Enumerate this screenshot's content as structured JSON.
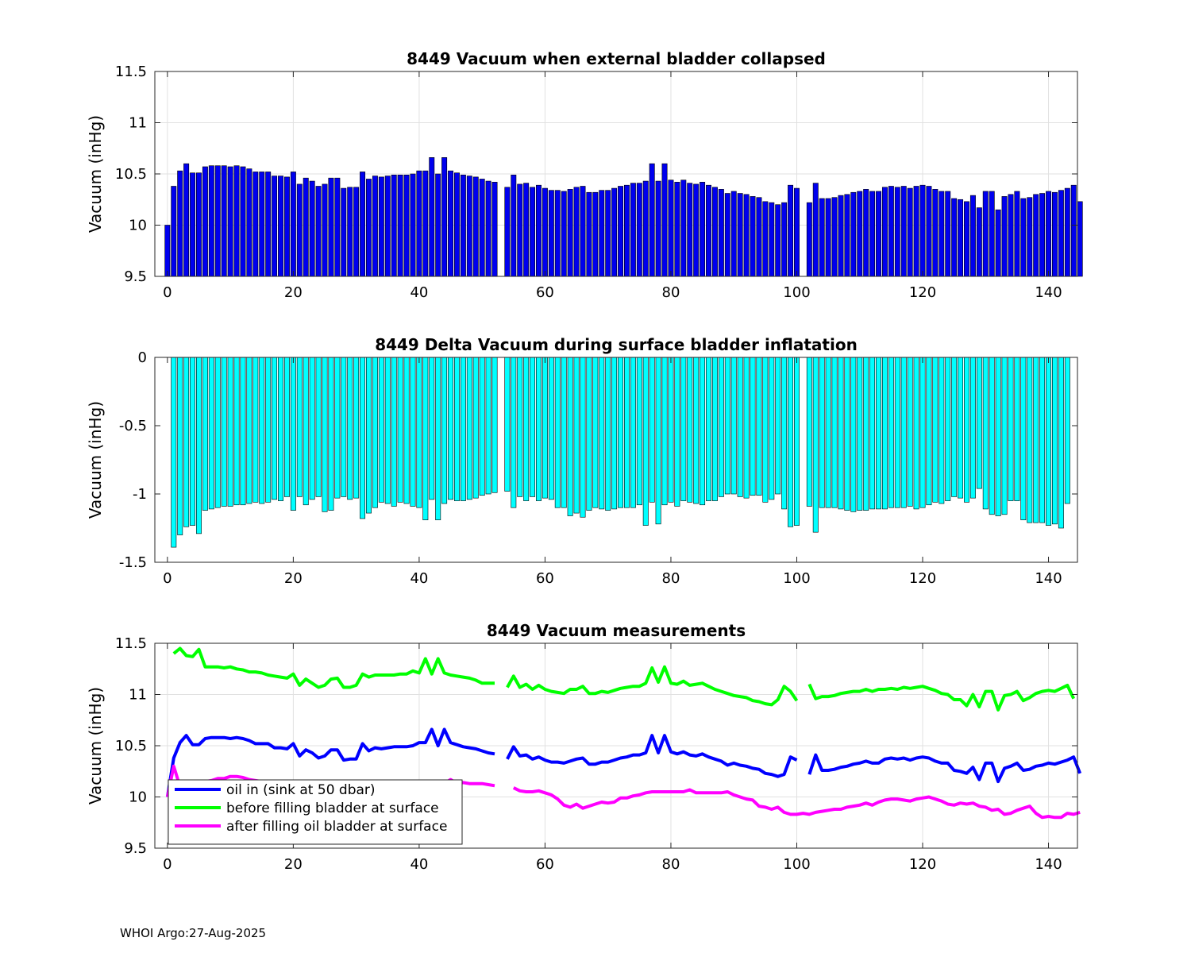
{
  "footer": "WHOI Argo:27-Aug-2025",
  "chart_data": [
    {
      "type": "bar",
      "title": "8449 Vacuum when external bladder collapsed",
      "xlabel": "",
      "ylabel": "Vacuum (inHg)",
      "xlim": [
        -2,
        144.6
      ],
      "ylim": [
        9.5,
        11.5
      ],
      "xticks": [
        "0",
        "20",
        "40",
        "60",
        "80",
        "100",
        "120",
        "140"
      ],
      "yticks": [
        "9.5",
        "10",
        "10.5",
        "11",
        "11.5"
      ],
      "grid": true,
      "bar_color": "#0000EE",
      "x_start": 0,
      "missing_cycles": [
        53,
        101
      ],
      "values": [
        10.0,
        10.38,
        10.53,
        10.6,
        10.51,
        10.51,
        10.57,
        10.58,
        10.58,
        10.58,
        10.57,
        10.58,
        10.57,
        10.55,
        10.52,
        10.52,
        10.52,
        10.48,
        10.48,
        10.47,
        10.52,
        10.4,
        10.46,
        10.43,
        10.38,
        10.4,
        10.46,
        10.46,
        10.36,
        10.37,
        10.37,
        10.52,
        10.45,
        10.48,
        10.47,
        10.48,
        10.49,
        10.49,
        10.49,
        10.5,
        10.53,
        10.53,
        10.66,
        10.5,
        10.66,
        10.53,
        10.51,
        10.49,
        10.48,
        10.47,
        10.45,
        10.43,
        10.42,
        null,
        10.37,
        10.49,
        10.4,
        10.41,
        10.37,
        10.39,
        10.36,
        10.34,
        10.34,
        10.33,
        10.35,
        10.37,
        10.38,
        10.32,
        10.32,
        10.34,
        10.34,
        10.36,
        10.38,
        10.39,
        10.41,
        10.41,
        10.43,
        10.6,
        10.43,
        10.6,
        10.44,
        10.42,
        10.44,
        10.41,
        10.4,
        10.42,
        10.39,
        10.37,
        10.35,
        10.31,
        10.33,
        10.31,
        10.3,
        10.28,
        10.27,
        10.23,
        10.22,
        10.2,
        10.22,
        10.39,
        10.36,
        null,
        10.22,
        10.41,
        10.26,
        10.26,
        10.27,
        10.29,
        10.3,
        10.32,
        10.33,
        10.35,
        10.33,
        10.33,
        10.37,
        10.38,
        10.37,
        10.38,
        10.36,
        10.38,
        10.39,
        10.38,
        10.35,
        10.33,
        10.33,
        10.26,
        10.25,
        10.23,
        10.29,
        10.17,
        10.33,
        10.33,
        10.15,
        10.28,
        10.3,
        10.33,
        10.26,
        10.27,
        10.3,
        10.31,
        10.33,
        10.32,
        10.34,
        10.36,
        10.39,
        10.23
      ]
    },
    {
      "type": "bar",
      "title": "8449 Delta Vacuum during surface bladder inflatation",
      "xlabel": "",
      "ylabel": "Vacuum (inHg)",
      "xlim": [
        -2,
        144.6
      ],
      "ylim": [
        -1.5,
        0
      ],
      "xticks": [
        "0",
        "20",
        "40",
        "60",
        "80",
        "100",
        "120",
        "140"
      ],
      "yticks": [
        "-1.5",
        "-1",
        "-0.5",
        "0"
      ],
      "grid": false,
      "bar_color": "#00FFFF",
      "x_start": 1,
      "missing_cycles": [
        53,
        101
      ],
      "values": [
        -1.39,
        -1.3,
        -1.24,
        -1.23,
        -1.29,
        -1.12,
        -1.11,
        -1.1,
        -1.09,
        -1.09,
        -1.08,
        -1.08,
        -1.07,
        -1.06,
        -1.07,
        -1.06,
        -1.04,
        -1.05,
        -1.02,
        -1.12,
        -1.02,
        -1.08,
        -1.04,
        -1.02,
        -1.13,
        -1.12,
        -1.03,
        -1.02,
        -1.04,
        -1.03,
        -1.18,
        -1.14,
        -1.1,
        -1.06,
        -1.07,
        -1.09,
        -1.06,
        -1.07,
        -1.09,
        -1.1,
        -1.19,
        -1.04,
        -1.19,
        -1.07,
        -1.04,
        -1.05,
        -1.05,
        -1.04,
        -1.03,
        -1.01,
        -1.0,
        -0.99,
        null,
        -0.98,
        -1.1,
        -1.02,
        -1.05,
        -1.02,
        -1.05,
        -1.03,
        -1.04,
        -1.1,
        -1.1,
        -1.16,
        -1.14,
        -1.17,
        -1.12,
        -1.1,
        -1.11,
        -1.12,
        -1.11,
        -1.1,
        -1.1,
        -1.1,
        -1.08,
        -1.23,
        -1.06,
        -1.22,
        -1.08,
        -1.06,
        -1.09,
        -1.05,
        -1.06,
        -1.07,
        -1.08,
        -1.05,
        -1.05,
        -1.02,
        -1.0,
        -1.0,
        -1.02,
        -1.03,
        -1.01,
        -1.01,
        -1.06,
        -1.04,
        -1.0,
        -1.11,
        -1.24,
        -1.23,
        null,
        -1.09,
        -1.28,
        -1.1,
        -1.1,
        -1.1,
        -1.11,
        -1.12,
        -1.13,
        -1.12,
        -1.12,
        -1.11,
        -1.11,
        -1.11,
        -1.1,
        -1.1,
        -1.1,
        -1.09,
        -1.11,
        -1.1,
        -1.08,
        -1.06,
        -1.07,
        -1.05,
        -1.02,
        -1.03,
        -1.06,
        -1.03,
        -0.96,
        -1.11,
        -1.15,
        -1.16,
        -1.15,
        -1.05,
        -1.05,
        -1.19,
        -1.21,
        -1.21,
        -1.21,
        -1.23,
        -1.22,
        -1.25,
        -1.07
      ]
    },
    {
      "type": "line",
      "title": "8449 Vacuum measurements",
      "xlabel": "",
      "ylabel": "Vacuum (inHg)",
      "xlim": [
        -2,
        144.6
      ],
      "ylim": [
        9.5,
        11.5
      ],
      "xticks": [
        "0",
        "20",
        "40",
        "60",
        "80",
        "100",
        "120",
        "140"
      ],
      "yticks": [
        "9.5",
        "10",
        "10.5",
        "11",
        "11.5"
      ],
      "grid": true,
      "legend": "bottom-left",
      "series": [
        {
          "name": "oil in (sink at 50 dbar)",
          "color": "#0000FF",
          "x_start": 0,
          "values": [
            10.0,
            10.38,
            10.53,
            10.6,
            10.51,
            10.51,
            10.57,
            10.58,
            10.58,
            10.58,
            10.57,
            10.58,
            10.57,
            10.55,
            10.52,
            10.52,
            10.52,
            10.48,
            10.48,
            10.47,
            10.52,
            10.4,
            10.46,
            10.43,
            10.38,
            10.4,
            10.46,
            10.46,
            10.36,
            10.37,
            10.37,
            10.52,
            10.45,
            10.48,
            10.47,
            10.48,
            10.49,
            10.49,
            10.49,
            10.5,
            10.53,
            10.53,
            10.66,
            10.5,
            10.66,
            10.53,
            10.51,
            10.49,
            10.48,
            10.47,
            10.45,
            10.43,
            10.42,
            null,
            10.37,
            10.49,
            10.4,
            10.41,
            10.37,
            10.39,
            10.36,
            10.34,
            10.34,
            10.33,
            10.35,
            10.37,
            10.38,
            10.32,
            10.32,
            10.34,
            10.34,
            10.36,
            10.38,
            10.39,
            10.41,
            10.41,
            10.43,
            10.6,
            10.43,
            10.6,
            10.44,
            10.42,
            10.44,
            10.41,
            10.4,
            10.42,
            10.39,
            10.37,
            10.35,
            10.31,
            10.33,
            10.31,
            10.3,
            10.28,
            10.27,
            10.23,
            10.22,
            10.2,
            10.22,
            10.39,
            10.36,
            null,
            10.22,
            10.41,
            10.26,
            10.26,
            10.27,
            10.29,
            10.3,
            10.32,
            10.33,
            10.35,
            10.33,
            10.33,
            10.37,
            10.38,
            10.37,
            10.38,
            10.36,
            10.38,
            10.39,
            10.38,
            10.35,
            10.33,
            10.33,
            10.26,
            10.25,
            10.23,
            10.29,
            10.17,
            10.33,
            10.33,
            10.15,
            10.28,
            10.3,
            10.33,
            10.26,
            10.27,
            10.3,
            10.31,
            10.33,
            10.32,
            10.34,
            10.36,
            10.39,
            10.23
          ]
        },
        {
          "name": "before filling bladder at surface",
          "color": "#00FF00",
          "x_start": 1,
          "values": [
            11.4,
            11.45,
            11.38,
            11.37,
            11.44,
            11.27,
            11.27,
            11.27,
            11.26,
            11.27,
            11.25,
            11.24,
            11.22,
            11.22,
            11.21,
            11.19,
            11.18,
            11.17,
            11.16,
            11.2,
            11.09,
            11.15,
            11.11,
            11.07,
            11.09,
            11.15,
            11.16,
            11.07,
            11.07,
            11.09,
            11.2,
            11.17,
            11.19,
            11.19,
            11.19,
            11.19,
            11.2,
            11.2,
            11.23,
            11.21,
            11.35,
            11.2,
            11.35,
            11.21,
            11.19,
            11.18,
            11.17,
            11.16,
            11.14,
            11.11,
            11.11,
            11.11,
            null,
            11.07,
            11.18,
            11.07,
            11.1,
            11.05,
            11.09,
            11.05,
            11.03,
            11.02,
            11.01,
            11.05,
            11.05,
            11.08,
            11.01,
            11.01,
            11.03,
            11.02,
            11.04,
            11.06,
            11.07,
            11.08,
            11.08,
            11.11,
            11.26,
            11.12,
            11.27,
            11.11,
            11.1,
            11.13,
            11.09,
            11.1,
            11.11,
            11.08,
            11.05,
            11.03,
            11.01,
            10.99,
            10.98,
            10.97,
            10.94,
            10.93,
            10.91,
            10.9,
            10.95,
            11.08,
            11.03,
            10.94,
            null,
            11.1,
            10.96,
            10.98,
            10.98,
            10.99,
            11.01,
            11.02,
            11.03,
            11.03,
            11.05,
            11.03,
            11.05,
            11.05,
            11.06,
            11.05,
            11.07,
            11.06,
            11.07,
            11.08,
            11.06,
            11.04,
            11.01,
            11.0,
            10.95,
            10.95,
            10.89,
            11.0,
            10.88,
            11.03,
            11.03,
            10.85,
            10.99,
            11.0,
            11.03,
            10.94,
            10.97,
            11.01,
            11.03,
            11.04,
            11.03,
            11.06,
            11.09,
            10.96
          ]
        },
        {
          "name": "after filling oil bladder at surface",
          "color": "#FF00FF",
          "x_start": 0,
          "values": [
            10.0,
            10.3,
            10.1,
            10.12,
            10.14,
            10.14,
            10.15,
            10.16,
            10.18,
            10.18,
            10.2,
            10.2,
            10.19,
            10.17,
            10.16,
            10.15,
            10.14,
            10.14,
            10.13,
            10.14,
            10.1,
            10.12,
            10.1,
            10.08,
            10.07,
            10.09,
            10.1,
            10.08,
            10.06,
            10.07,
            10.08,
            10.1,
            10.09,
            10.1,
            10.1,
            10.11,
            10.11,
            10.12,
            10.12,
            10.13,
            10.15,
            10.13,
            10.15,
            10.14,
            10.13,
            10.17,
            10.13,
            10.14,
            10.13,
            10.13,
            10.13,
            10.12,
            10.11,
            null,
            null,
            10.09,
            10.06,
            10.05,
            10.05,
            10.06,
            10.04,
            10.02,
            9.98,
            9.92,
            9.9,
            9.93,
            9.89,
            9.91,
            9.93,
            9.95,
            9.94,
            9.95,
            9.99,
            9.99,
            10.01,
            10.02,
            10.04,
            10.05,
            10.05,
            10.05,
            10.05,
            10.05,
            10.05,
            10.07,
            10.04,
            10.04,
            10.04,
            10.04,
            10.04,
            10.05,
            10.02,
            10.0,
            9.98,
            9.97,
            9.91,
            9.9,
            9.88,
            9.9,
            9.85,
            9.83,
            9.83,
            9.84,
            9.83,
            9.85,
            9.86,
            9.87,
            9.88,
            9.88,
            9.9,
            9.91,
            9.92,
            9.94,
            9.92,
            9.95,
            9.97,
            9.98,
            9.98,
            9.97,
            9.96,
            9.98,
            9.99,
            10.0,
            9.98,
            9.96,
            9.93,
            9.92,
            9.94,
            9.93,
            9.94,
            9.91,
            9.9,
            9.87,
            9.88,
            9.83,
            9.84,
            9.87,
            9.89,
            9.91,
            9.84,
            9.8,
            9.81,
            9.8,
            9.8,
            9.84,
            9.83,
            9.85
          ]
        }
      ]
    }
  ]
}
